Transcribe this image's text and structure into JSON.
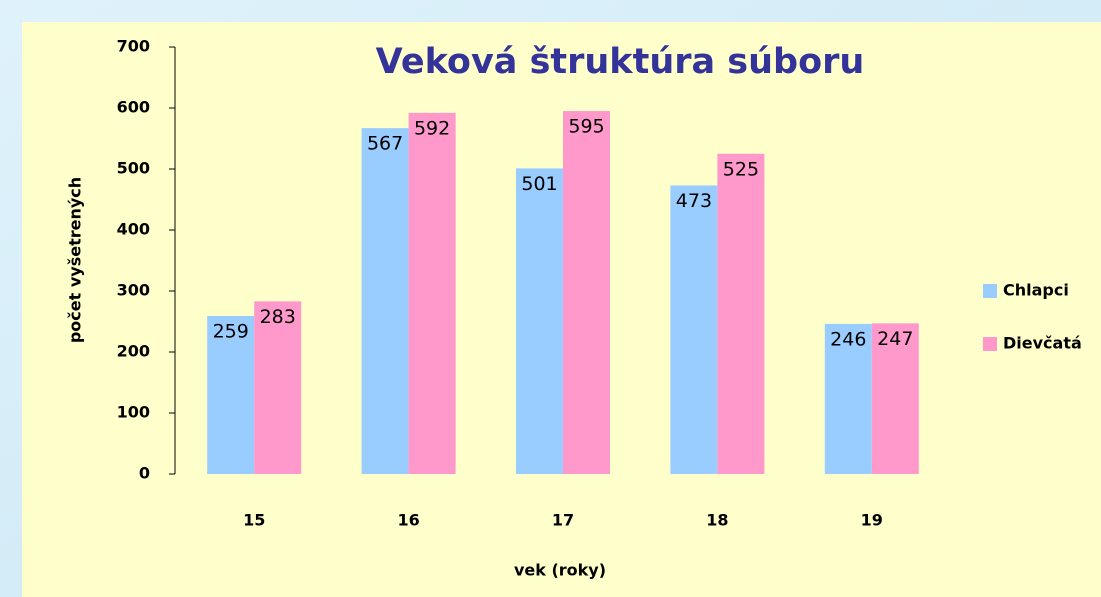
{
  "chart_data": {
    "type": "bar",
    "title": "Veková štruktúra súboru",
    "x_label": "vek (roky)",
    "y_label": "počet vyšetrených",
    "categories": [
      "15",
      "16",
      "17",
      "18",
      "19"
    ],
    "series": [
      {
        "name": "Chlapci",
        "color": "#99ccff",
        "values": [
          259,
          567,
          501,
          473,
          246
        ]
      },
      {
        "name": "Dievčatá",
        "color": "#ff99cc",
        "values": [
          283,
          592,
          595,
          525,
          247
        ]
      }
    ],
    "ylim": [
      0,
      700
    ],
    "yticks": [
      0,
      100,
      200,
      300,
      400,
      500,
      600,
      700
    ],
    "grid": false,
    "legend": "right"
  }
}
